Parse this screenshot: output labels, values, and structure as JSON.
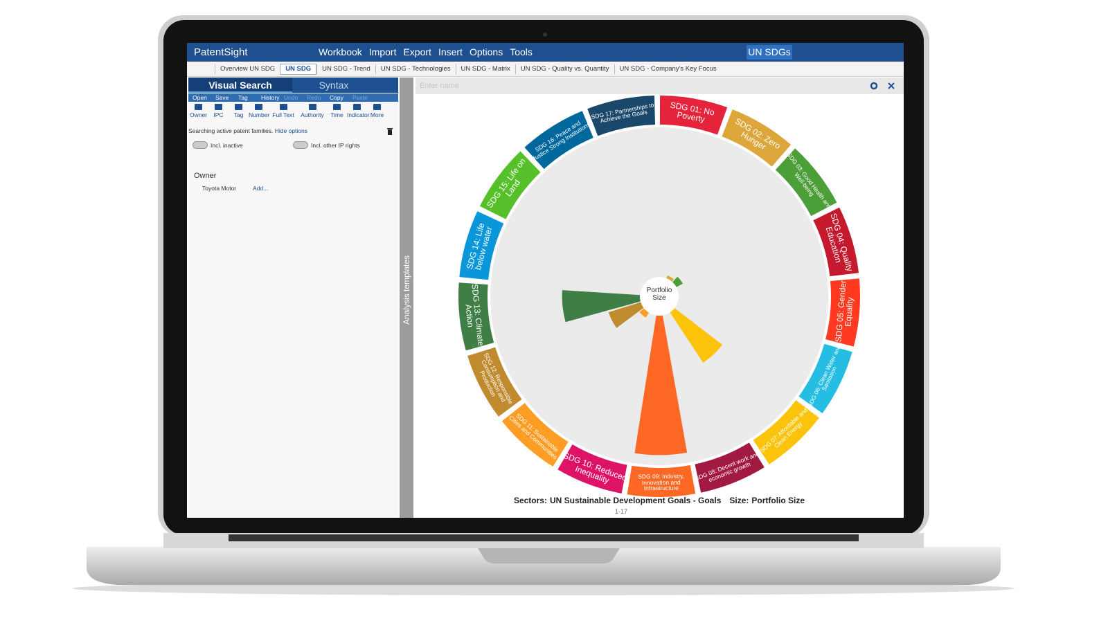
{
  "app": {
    "brand": "PatentSight",
    "menu": [
      "Workbook",
      "Import",
      "Export",
      "Insert",
      "Options",
      "Tools"
    ],
    "workspace": "UN SDGs"
  },
  "tabs": {
    "items": [
      "Overview UN SDG",
      "UN SDG",
      "UN SDG - Trend",
      "UN SDG - Technologies",
      "UN SDG - Matrix",
      "UN SDG - Quality vs. Quantity",
      "UN SDG - Company's Key Focus"
    ],
    "active": 1
  },
  "search_panel": {
    "modes": [
      "Visual Search",
      "Syntax"
    ],
    "actions": [
      "Open",
      "Save",
      "Tag",
      "History",
      "Undo",
      "Redo",
      "Copy",
      "Paste"
    ],
    "disabled_actions": [
      4,
      5,
      7
    ],
    "tools": [
      "Owner",
      "IPC",
      "Tag",
      "Number",
      "Full Text",
      "Authority",
      "Time",
      "Indicator",
      "More"
    ],
    "status": "Searching active patent families.",
    "status_link": "Hide options",
    "toggles": [
      "Incl. inactive",
      "Incl. other IP rights"
    ],
    "owner_label": "Owner",
    "owner_value": "Toyota Motor",
    "owner_add": "Add..."
  },
  "templates_label": "Analysis templates",
  "name_placeholder": "Enter name",
  "chart_data": {
    "type": "radial-bar",
    "center_label": "Portfolio Size",
    "rlim": [
      0,
      100
    ],
    "categories": [
      "SDG 01: No Poverty",
      "SDG 02: Zero Hunger",
      "SDG 03: Good Health and Well-being",
      "SDG 04: Quality Education",
      "SDG 05: Gender Equality",
      "SDG 06: Clean Water and Sanitation",
      "SDG 07: Affordable and Clean Energy",
      "SDG 08: Decent work and economic growth",
      "SDG 09: Industry, Innovation and Infrastructure",
      "SDG 10: Reduced Inequality",
      "SDG 11: Sustainable Cities and Communities",
      "SDG 12: Responsible Consumption and Production",
      "SDG 13: Climate Action",
      "SDG 14: Life below water",
      "SDG 15: Life on Land",
      "SDG 16: Peace and Justice Strong Institutions",
      "SDG 17: Partnerships to Achieve the Goals"
    ],
    "colors": [
      "#e5243b",
      "#dda63a",
      "#4c9f38",
      "#c5192d",
      "#ff3a21",
      "#26bde2",
      "#fcc30b",
      "#a21942",
      "#fd6925",
      "#dd1367",
      "#fd9d24",
      "#bf8b2e",
      "#3f7e44",
      "#0a97d9",
      "#56c02b",
      "#00689d",
      "#19486a"
    ],
    "values": [
      0,
      2,
      5,
      0,
      0,
      0,
      41,
      0,
      95,
      0,
      4,
      23,
      53,
      0,
      0,
      0,
      0
    ],
    "footer": {
      "sectors_label": "Sectors:",
      "sectors_value": "UN Sustainable Development Goals - Goals",
      "size_label": "Size:",
      "size_value": "Portfolio Size",
      "pager": "1-17"
    }
  }
}
